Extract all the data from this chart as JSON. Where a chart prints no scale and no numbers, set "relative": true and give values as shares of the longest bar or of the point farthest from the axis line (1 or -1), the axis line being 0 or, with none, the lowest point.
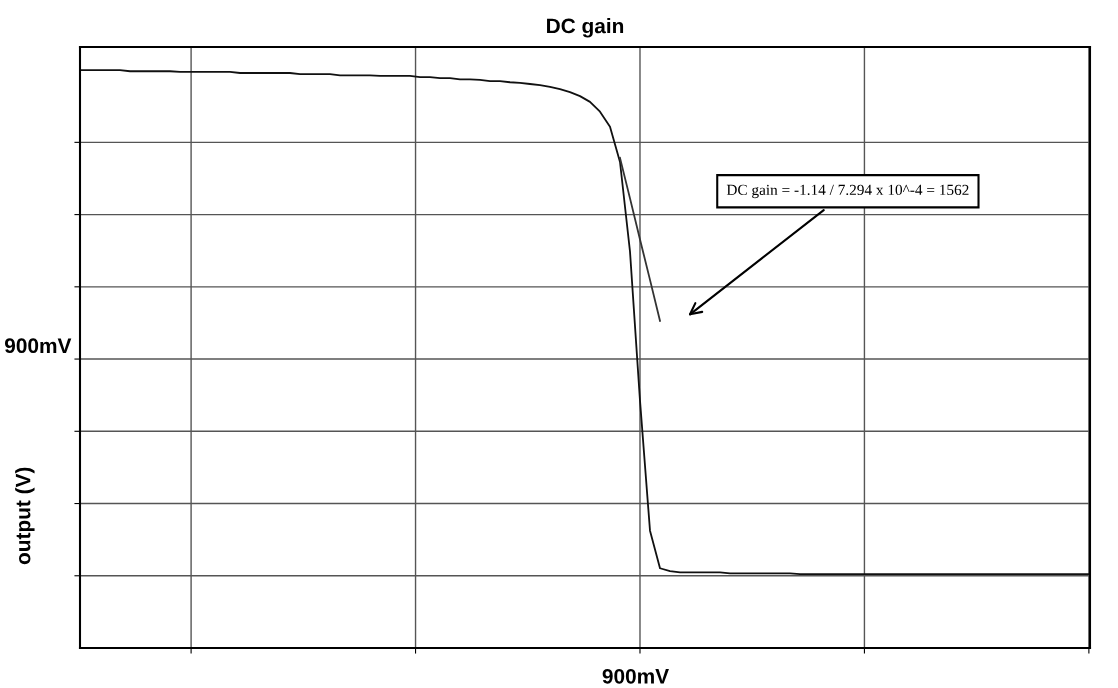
{
  "chart_data": {
    "type": "line",
    "title": "DC gain",
    "ylabel": "output (V)",
    "relative": true,
    "grid": true,
    "marker": "none",
    "line_style": "solid",
    "tick_labels": false,
    "categories": [
      null,
      null,
      null,
      null,
      null,
      null,
      null,
      null,
      null,
      null,
      null,
      null,
      null,
      null,
      null,
      null,
      null,
      null,
      null,
      null,
      null,
      null,
      null,
      null,
      null,
      null,
      null,
      null,
      null,
      null,
      null,
      null,
      null,
      null,
      null,
      null,
      null,
      null,
      null,
      null,
      null,
      null,
      null,
      null,
      null,
      null,
      null,
      null,
      null,
      null,
      null,
      null,
      null,
      null,
      null,
      null,
      null,
      null,
      null,
      null,
      null,
      null,
      null,
      null,
      null,
      null,
      null,
      null,
      null,
      null,
      null,
      null,
      null,
      null,
      null,
      null,
      null,
      null,
      null,
      null,
      null,
      null,
      null,
      null,
      null,
      null,
      null,
      null,
      null,
      null,
      null,
      null,
      null,
      null,
      null,
      null,
      null,
      null,
      null,
      null,
      null,
      null
    ],
    "series": [
      {
        "color": "#111111",
        "values": [
          1.0,
          1.0,
          1.0,
          1.0,
          1.0,
          0.998,
          0.998,
          0.998,
          0.998,
          0.998,
          0.997,
          0.997,
          0.997,
          0.997,
          0.997,
          0.997,
          0.995,
          0.995,
          0.995,
          0.995,
          0.995,
          0.995,
          0.993,
          0.993,
          0.993,
          0.993,
          0.991,
          0.991,
          0.991,
          0.991,
          0.99,
          0.99,
          0.99,
          0.99,
          0.988,
          0.988,
          0.986,
          0.986,
          0.984,
          0.984,
          0.983,
          0.981,
          0.981,
          0.979,
          0.978,
          0.976,
          0.974,
          0.971,
          0.967,
          0.962,
          0.955,
          0.945,
          0.928,
          0.902,
          0.841,
          0.686,
          0.428,
          0.203,
          0.138,
          0.133,
          0.131,
          0.131,
          0.131,
          0.131,
          0.131,
          0.129,
          0.129,
          0.129,
          0.129,
          0.129,
          0.129,
          0.129,
          0.128,
          0.128,
          0.128,
          0.128,
          0.128,
          0.128,
          0.128,
          0.128,
          0.128,
          0.128,
          0.128,
          0.128,
          0.128,
          0.128,
          0.128,
          0.128,
          0.128,
          0.128,
          0.128,
          0.128,
          0.128,
          0.128,
          0.128,
          0.128,
          0.128,
          0.128,
          0.128,
          0.128,
          0.128,
          0.128
        ]
      },
      {
        "color": "#333333",
        "values": [
          null,
          null,
          null,
          null,
          null,
          null,
          null,
          null,
          null,
          null,
          null,
          null,
          null,
          null,
          null,
          null,
          null,
          null,
          null,
          null,
          null,
          null,
          null,
          null,
          null,
          null,
          null,
          null,
          null,
          null,
          null,
          null,
          null,
          null,
          null,
          null,
          null,
          null,
          null,
          null,
          null,
          null,
          null,
          null,
          null,
          null,
          null,
          null,
          null,
          null,
          null,
          null,
          null,
          null,
          0.848,
          0.778,
          0.707,
          0.637,
          0.566,
          null,
          null,
          null,
          null,
          null,
          null,
          null,
          null,
          null,
          null,
          null,
          null,
          null,
          null,
          null,
          null,
          null,
          null,
          null,
          null,
          null,
          null,
          null,
          null,
          null,
          null,
          null,
          null,
          null,
          null,
          null,
          null,
          null,
          null,
          null,
          null,
          null,
          null,
          null,
          null,
          null,
          null,
          null
        ]
      }
    ],
    "annotations": [
      "900mV",
      "900mV",
      "DC gain = -1.14 / 7.294 x 10^-4 = 1562"
    ]
  }
}
